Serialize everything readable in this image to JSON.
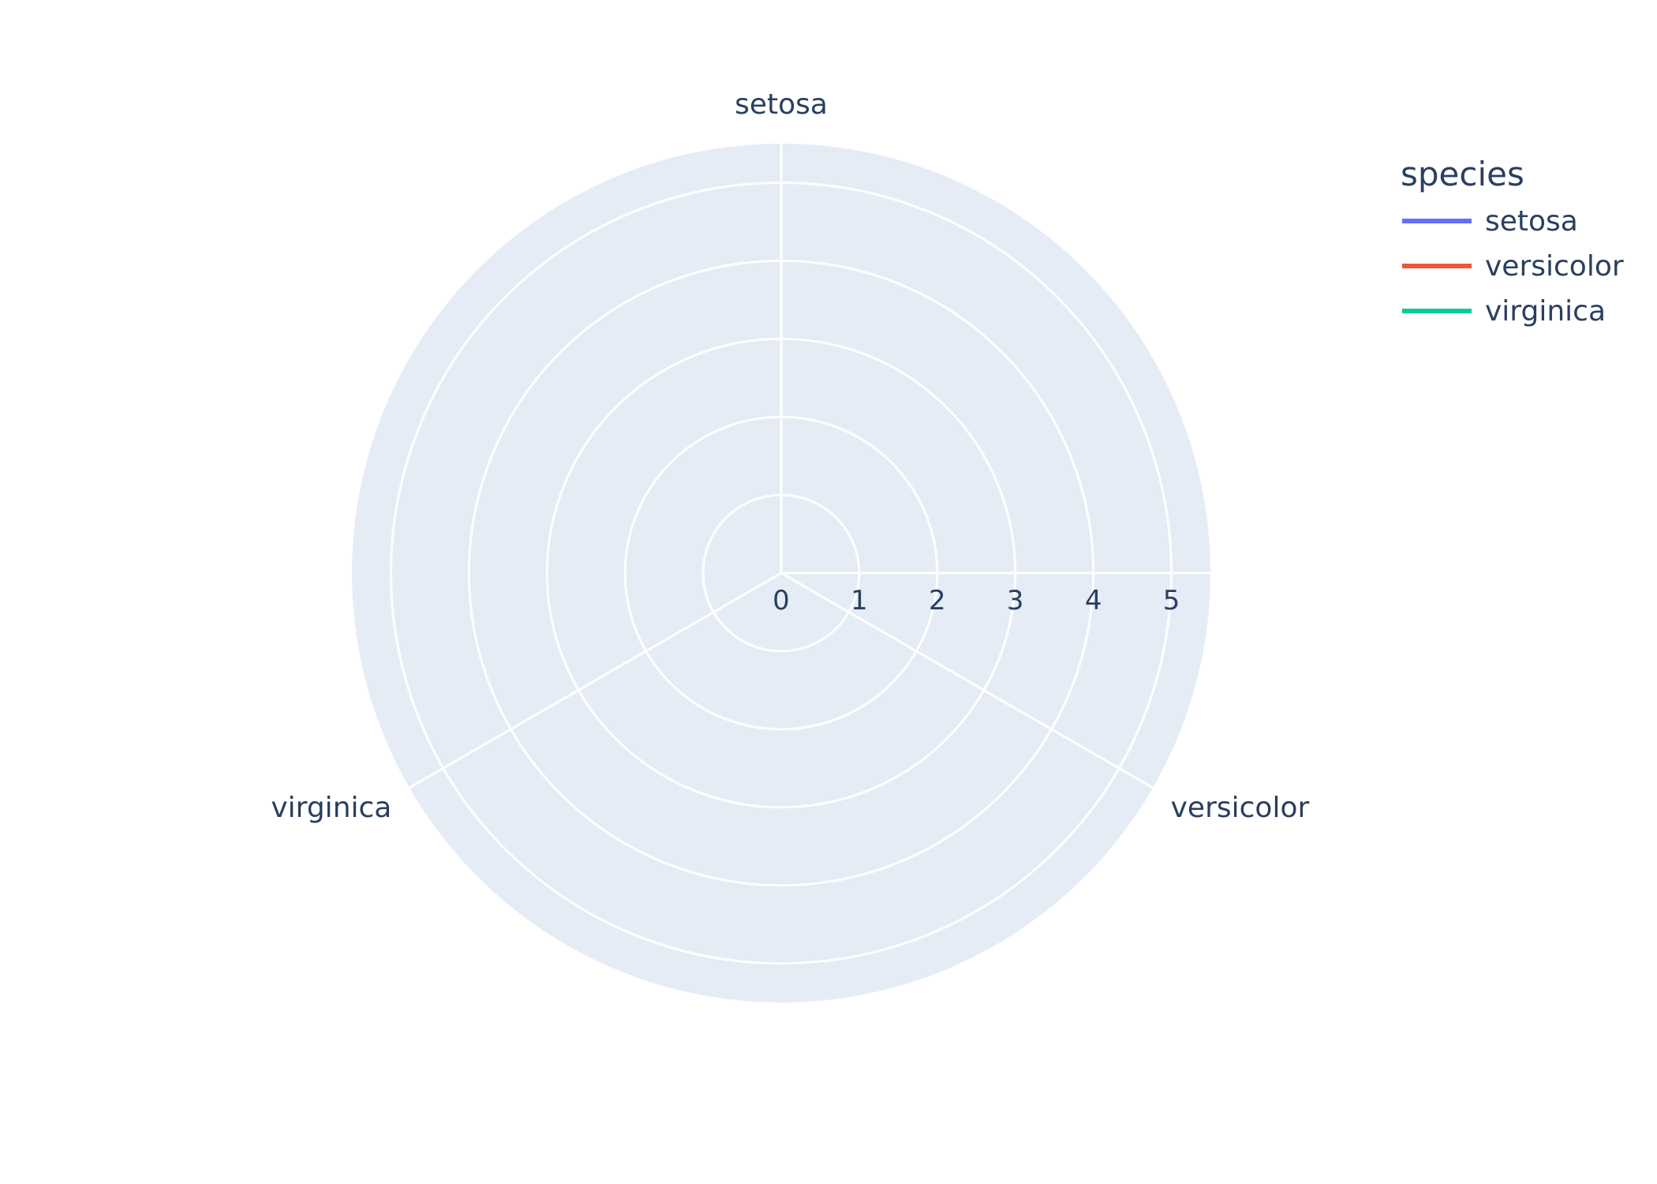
{
  "chart_data": {
    "type": "radar",
    "categories": [
      "setosa",
      "versicolor",
      "virginica"
    ],
    "radial_range": [
      0,
      5.5
    ],
    "radial_ticks": [
      0,
      1,
      2,
      3,
      4,
      5
    ],
    "radial_tick_labels": [
      "0",
      "1",
      "2",
      "3",
      "4",
      "5"
    ],
    "series": [
      {
        "name": "setosa",
        "color": "#636efa",
        "values": [
          0,
          0,
          0
        ]
      },
      {
        "name": "versicolor",
        "color": "#EF553B",
        "values": [
          0,
          0,
          0
        ]
      },
      {
        "name": "virginica",
        "color": "#00cc96",
        "values": [
          0,
          0,
          0
        ]
      }
    ],
    "legend": {
      "title": "species",
      "position": "top-right"
    },
    "grid": true,
    "colors": {
      "plot_background": "#E5ECF6",
      "grid": "#ffffff",
      "text": "#2a3f5f"
    }
  }
}
